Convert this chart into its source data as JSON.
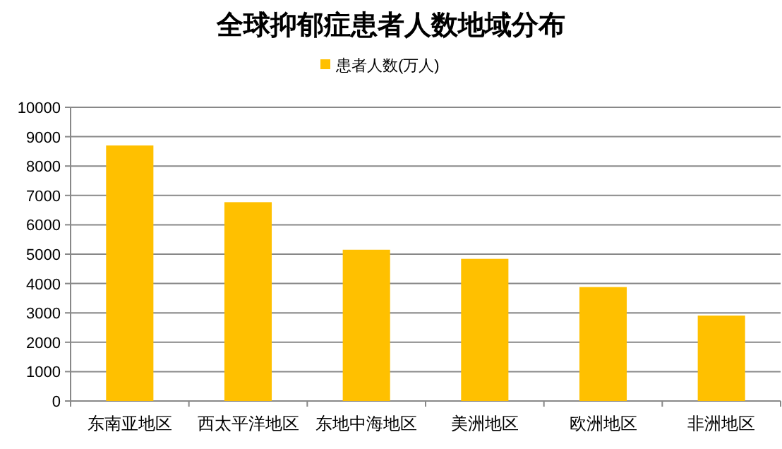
{
  "chart_data": {
    "type": "bar",
    "title": "全球抑郁症患者人数地域分布",
    "categories": [
      "东南亚地区",
      "西太平洋地区",
      "东地中海地区",
      "美洲地区",
      "欧洲地区",
      "非洲地区"
    ],
    "series": [
      {
        "name": "患者人数(万人)",
        "color": "#ffc000",
        "values": [
          8700,
          6770,
          5150,
          4840,
          3880,
          2910
        ]
      }
    ],
    "ylim": [
      0,
      10000
    ],
    "yticks": [
      0,
      1000,
      2000,
      3000,
      4000,
      5000,
      6000,
      7000,
      8000,
      9000,
      10000
    ],
    "grid": "y",
    "legend": "top"
  }
}
